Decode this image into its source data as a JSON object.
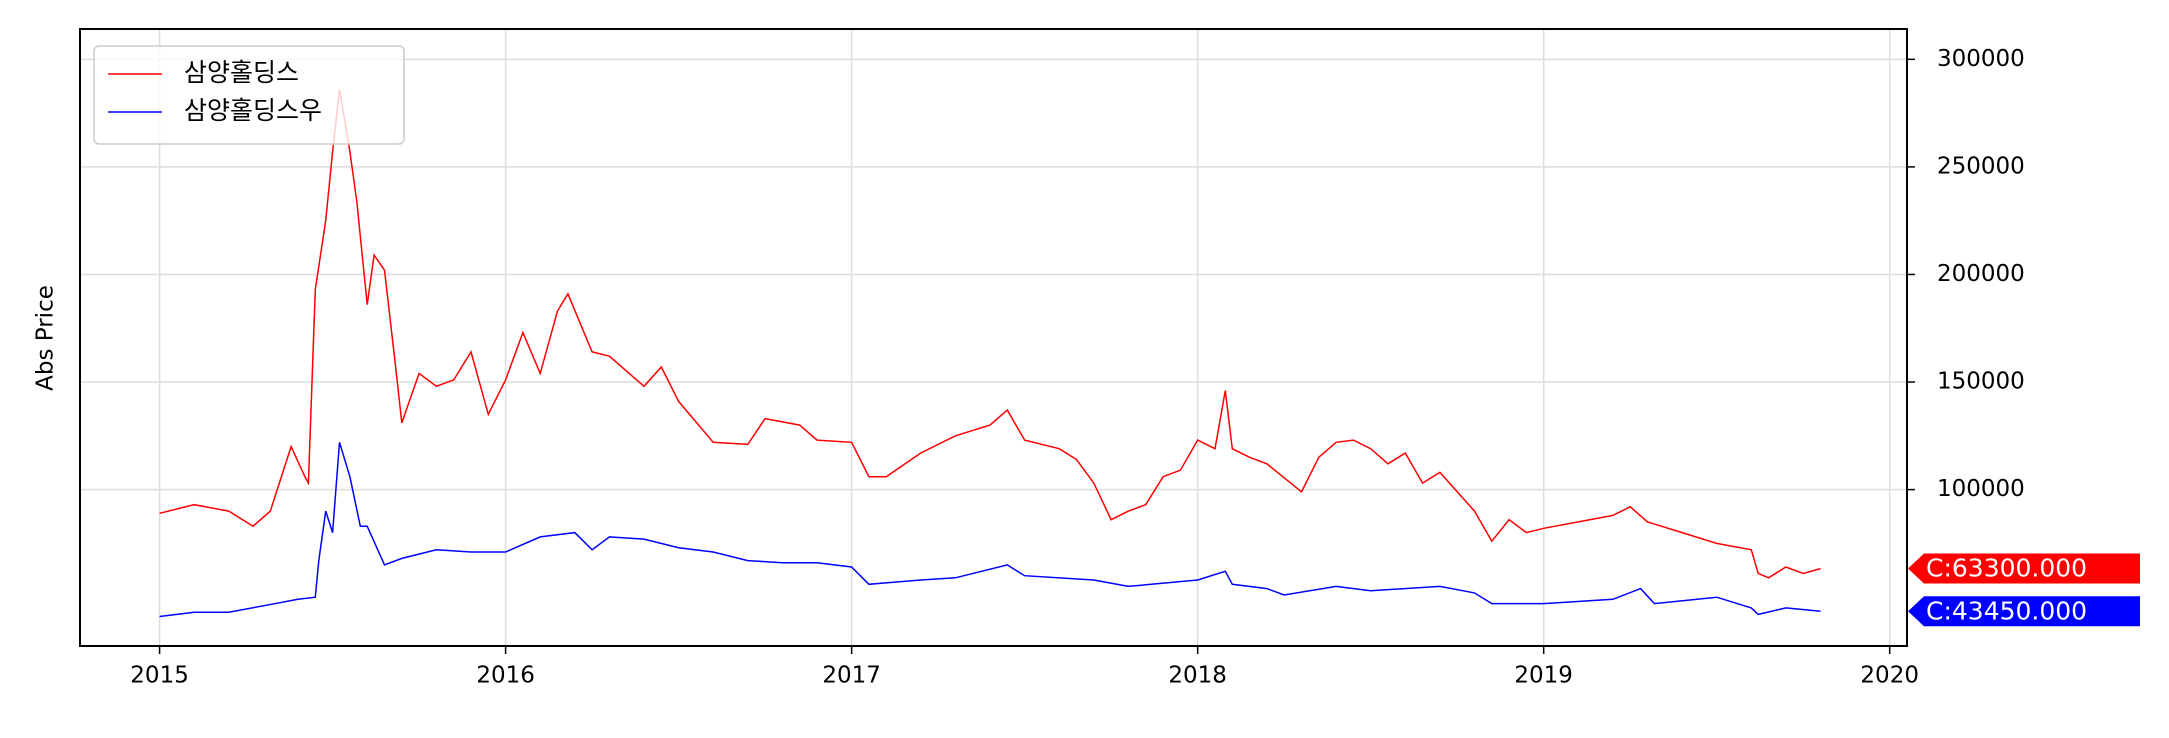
{
  "chart_data": {
    "type": "line",
    "ylabel": "Abs Price",
    "xlim": [
      2014.77,
      2020.05
    ],
    "xticks": [
      2015,
      2016,
      2017,
      2018,
      2019,
      2020
    ],
    "ylim": [
      27300,
      314100
    ],
    "yticks": [
      100000,
      150000,
      200000,
      250000,
      300000
    ],
    "grid": true,
    "legend": "upper left",
    "series": [
      {
        "name": "삼양홀딩스",
        "color": "#ff0000",
        "end_label": "C:63300.000",
        "x": [
          2015.0,
          2015.1,
          2015.2,
          2015.27,
          2015.32,
          2015.38,
          2015.42,
          2015.43,
          2015.45,
          2015.48,
          2015.5,
          2015.52,
          2015.55,
          2015.57,
          2015.6,
          2015.62,
          2015.65,
          2015.68,
          2015.7,
          2015.75,
          2015.8,
          2015.85,
          2015.9,
          2015.95,
          2016.0,
          2016.05,
          2016.1,
          2016.15,
          2016.18,
          2016.25,
          2016.3,
          2016.4,
          2016.45,
          2016.5,
          2016.6,
          2016.7,
          2016.75,
          2016.85,
          2016.9,
          2017.0,
          2017.05,
          2017.1,
          2017.2,
          2017.3,
          2017.4,
          2017.45,
          2017.5,
          2017.6,
          2017.65,
          2017.7,
          2017.75,
          2017.8,
          2017.85,
          2017.9,
          2017.95,
          2018.0,
          2018.05,
          2018.08,
          2018.1,
          2018.15,
          2018.2,
          2018.3,
          2018.35,
          2018.4,
          2018.45,
          2018.5,
          2018.55,
          2018.6,
          2018.65,
          2018.7,
          2018.75,
          2018.8,
          2018.85,
          2018.9,
          2018.95,
          2019.0,
          2019.1,
          2019.2,
          2019.25,
          2019.3,
          2019.4,
          2019.5,
          2019.6,
          2019.62,
          2019.65,
          2019.7,
          2019.75,
          2019.8
        ],
        "values": [
          89000,
          93000,
          90000,
          83000,
          90000,
          120000,
          106000,
          103000,
          193000,
          225000,
          257000,
          286000,
          257000,
          234000,
          186000,
          209000,
          202000,
          160000,
          131000,
          154000,
          148000,
          151000,
          164000,
          135000,
          151000,
          173000,
          154000,
          183000,
          191000,
          164000,
          162000,
          148000,
          157000,
          141000,
          122000,
          121000,
          133000,
          130000,
          123000,
          122000,
          106000,
          106000,
          117000,
          125000,
          130000,
          137000,
          123000,
          119000,
          114000,
          103000,
          86000,
          90000,
          93000,
          106000,
          109000,
          123000,
          119000,
          146000,
          119000,
          115000,
          112000,
          99000,
          115000,
          122000,
          123000,
          119000,
          112000,
          117000,
          103000,
          108000,
          99000,
          90000,
          76000,
          86000,
          80000,
          82000,
          85000,
          88000,
          92000,
          85000,
          80000,
          75000,
          72000,
          61000,
          59000,
          64000,
          61000,
          63300
        ]
      },
      {
        "name": "삼양홀딩스우",
        "color": "#0000ff",
        "end_label": "C:43450.000",
        "x": [
          2015.0,
          2015.1,
          2015.2,
          2015.3,
          2015.4,
          2015.45,
          2015.46,
          2015.48,
          2015.5,
          2015.52,
          2015.55,
          2015.58,
          2015.6,
          2015.65,
          2015.7,
          2015.8,
          2015.9,
          2016.0,
          2016.1,
          2016.2,
          2016.25,
          2016.3,
          2016.4,
          2016.5,
          2016.6,
          2016.7,
          2016.8,
          2016.9,
          2017.0,
          2017.05,
          2017.2,
          2017.3,
          2017.45,
          2017.5,
          2017.7,
          2017.8,
          2018.0,
          2018.08,
          2018.1,
          2018.2,
          2018.25,
          2018.4,
          2018.5,
          2018.7,
          2018.8,
          2018.85,
          2019.0,
          2019.2,
          2019.28,
          2019.32,
          2019.5,
          2019.6,
          2019.62,
          2019.7,
          2019.8
        ],
        "values": [
          41000,
          43000,
          43000,
          46000,
          49000,
          50000,
          67000,
          90000,
          80000,
          122000,
          106000,
          83000,
          83000,
          65000,
          68000,
          72000,
          71000,
          71000,
          78000,
          80000,
          72000,
          78000,
          77000,
          73000,
          71000,
          67000,
          66000,
          66000,
          64000,
          56000,
          58000,
          59000,
          65000,
          60000,
          58000,
          55000,
          58000,
          62000,
          56000,
          54000,
          51000,
          55000,
          53000,
          55000,
          52000,
          47000,
          47000,
          49000,
          54000,
          47000,
          50000,
          45000,
          42000,
          45000,
          43450
        ]
      }
    ]
  }
}
